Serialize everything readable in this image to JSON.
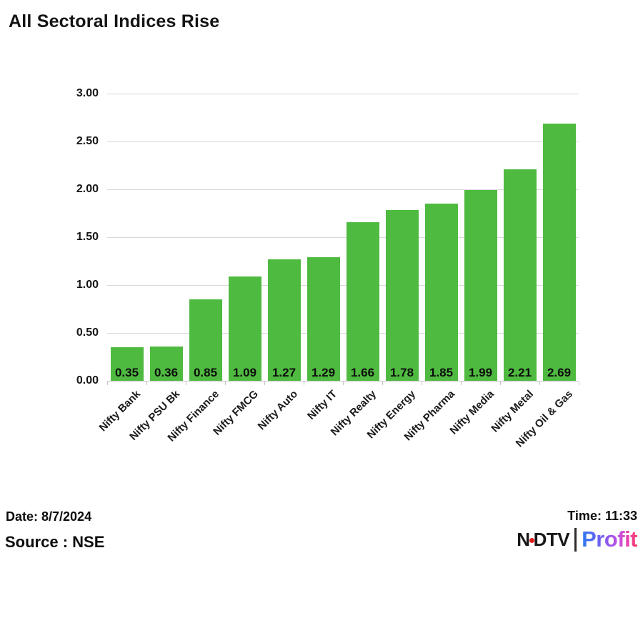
{
  "title": "All Sectoral Indices Rise",
  "chart_data": {
    "type": "bar",
    "title": "All Sectoral Indices Rise",
    "categories": [
      "Nifty Bank",
      "Nifty PSU Bk",
      "Nifty Finance",
      "Nifty FMCG",
      "Nifty Auto",
      "Nifty IT",
      "Nifty Realty",
      "Nifty Energy",
      "Nifty Pharma",
      "Nifty Media",
      "Nifty Metal",
      "Nifty Oil & Gas"
    ],
    "values": [
      0.35,
      0.36,
      0.85,
      1.09,
      1.27,
      1.29,
      1.66,
      1.78,
      1.85,
      1.99,
      2.21,
      2.69
    ],
    "value_labels": [
      "0.35",
      "0.36",
      "0.85",
      "1.09",
      "1.27",
      "1.29",
      "1.66",
      "1.78",
      "1.85",
      "1.99",
      "2.21",
      "2.69"
    ],
    "xlabel": "",
    "ylabel": "",
    "ylim": [
      0,
      3.0
    ],
    "ytick_labels": [
      "0.00",
      "0.50",
      "1.00",
      "1.50",
      "2.00",
      "2.50",
      "3.00"
    ],
    "grid": true,
    "legend_position": "none",
    "bar_color": "#4fba40",
    "grid_color": "#d9d9d9"
  },
  "footer": {
    "date_label": "Date: 8/7/2024",
    "source_label": "Source : NSE",
    "time_label": "Time: 11:33",
    "logo": {
      "ndtv_part1": "N",
      "ndtv_part2": "DTV",
      "profit": "Profit",
      "dot_color": "#e31c1c"
    }
  }
}
